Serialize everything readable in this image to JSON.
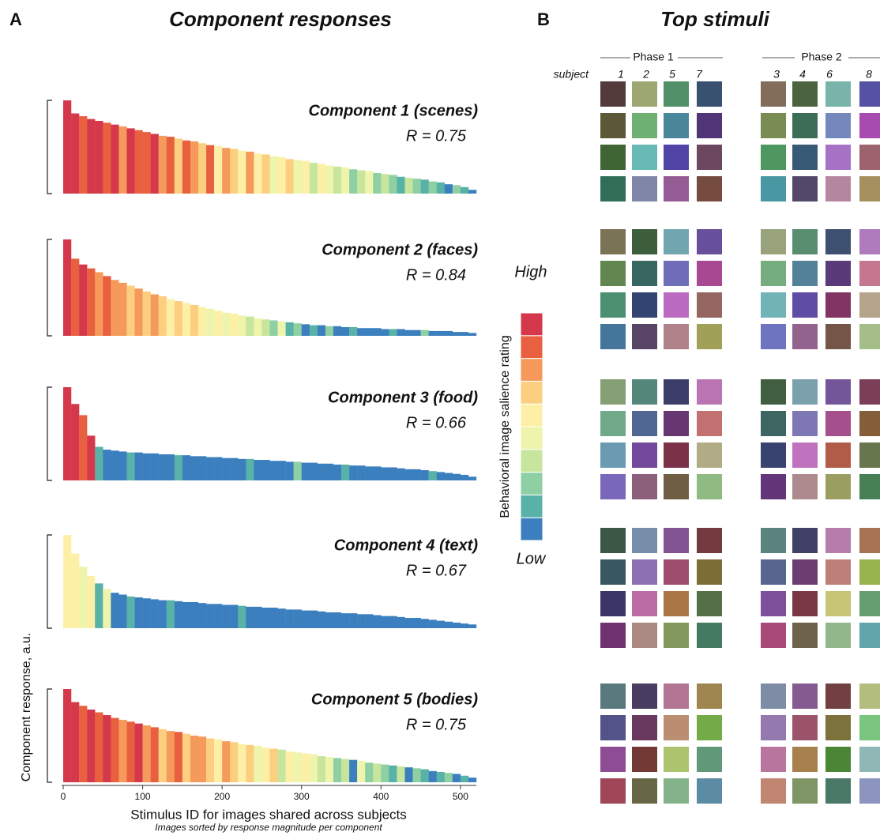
{
  "panels": {
    "A": {
      "letter": "A",
      "title": "Component responses"
    },
    "B": {
      "letter": "B",
      "title": "Top stimuli"
    }
  },
  "legend": {
    "title": "Behavioral image salience rating",
    "high": "High",
    "low": "Low",
    "colors": [
      "#3b7fbf",
      "#58b2a8",
      "#8ecfa3",
      "#c7e59c",
      "#eef4ab",
      "#fdf0a6",
      "#fbcf7f",
      "#f59a5a",
      "#e8603f",
      "#d5384a"
    ]
  },
  "top_stimuli": {
    "subject_label": "subject",
    "phases": [
      {
        "name": "Phase 1",
        "subjects": [
          "1",
          "2",
          "5",
          "7"
        ]
      },
      {
        "name": "Phase 2",
        "subjects": [
          "3",
          "4",
          "6",
          "8"
        ]
      }
    ]
  },
  "chart_data": [
    {
      "type": "bar",
      "title": "Component 1 (scenes)",
      "annotation": "R = 0.75",
      "xlim": [
        0,
        520
      ],
      "ylim": [
        0,
        1
      ],
      "x": [
        0,
        10,
        20,
        30,
        40,
        50,
        60,
        70,
        80,
        90,
        100,
        110,
        120,
        130,
        140,
        150,
        160,
        170,
        180,
        190,
        200,
        210,
        220,
        230,
        240,
        250,
        260,
        270,
        280,
        290,
        300,
        310,
        320,
        330,
        340,
        350,
        360,
        370,
        380,
        390,
        400,
        410,
        420,
        430,
        440,
        450,
        460,
        470,
        480,
        490,
        500,
        510
      ],
      "values": [
        1.0,
        0.86,
        0.83,
        0.8,
        0.78,
        0.76,
        0.74,
        0.72,
        0.7,
        0.68,
        0.66,
        0.64,
        0.62,
        0.61,
        0.59,
        0.57,
        0.56,
        0.54,
        0.52,
        0.51,
        0.49,
        0.48,
        0.46,
        0.45,
        0.43,
        0.42,
        0.4,
        0.39,
        0.37,
        0.36,
        0.35,
        0.33,
        0.32,
        0.3,
        0.29,
        0.28,
        0.26,
        0.25,
        0.24,
        0.22,
        0.21,
        0.2,
        0.18,
        0.17,
        0.16,
        0.15,
        0.13,
        0.12,
        0.1,
        0.09,
        0.07,
        0.04
      ],
      "ratings": [
        10,
        10,
        9,
        10,
        10,
        9,
        10,
        8,
        10,
        9,
        9,
        10,
        8,
        9,
        7,
        9,
        8,
        7,
        9,
        6,
        8,
        7,
        6,
        8,
        6,
        7,
        5,
        6,
        7,
        5,
        6,
        4,
        6,
        5,
        4,
        5,
        3,
        4,
        5,
        3,
        4,
        3,
        2,
        4,
        3,
        2,
        3,
        2,
        1,
        3,
        2,
        1
      ]
    },
    {
      "type": "bar",
      "title": "Component 2 (faces)",
      "annotation": "R = 0.84",
      "xlim": [
        0,
        520
      ],
      "ylim": [
        0,
        1
      ],
      "x": [
        0,
        10,
        20,
        30,
        40,
        50,
        60,
        70,
        80,
        90,
        100,
        110,
        120,
        130,
        140,
        150,
        160,
        170,
        180,
        190,
        200,
        210,
        220,
        230,
        240,
        250,
        260,
        270,
        280,
        290,
        300,
        310,
        320,
        330,
        340,
        350,
        360,
        370,
        380,
        390,
        400,
        410,
        420,
        430,
        440,
        450,
        460,
        470,
        480,
        490,
        500,
        510
      ],
      "values": [
        1.0,
        0.8,
        0.74,
        0.7,
        0.66,
        0.62,
        0.58,
        0.55,
        0.52,
        0.49,
        0.46,
        0.43,
        0.41,
        0.38,
        0.36,
        0.34,
        0.32,
        0.3,
        0.28,
        0.26,
        0.24,
        0.23,
        0.21,
        0.2,
        0.18,
        0.17,
        0.16,
        0.15,
        0.14,
        0.13,
        0.12,
        0.11,
        0.11,
        0.1,
        0.1,
        0.09,
        0.09,
        0.08,
        0.08,
        0.08,
        0.07,
        0.07,
        0.07,
        0.06,
        0.06,
        0.06,
        0.05,
        0.05,
        0.05,
        0.04,
        0.04,
        0.03
      ],
      "ratings": [
        10,
        9,
        10,
        9,
        8,
        9,
        8,
        8,
        7,
        8,
        7,
        8,
        7,
        6,
        7,
        6,
        7,
        6,
        5,
        6,
        5,
        6,
        5,
        4,
        5,
        4,
        3,
        5,
        2,
        3,
        1,
        2,
        1,
        3,
        1,
        1,
        2,
        1,
        1,
        1,
        1,
        2,
        1,
        1,
        1,
        3,
        1,
        1,
        1,
        1,
        1,
        1
      ]
    },
    {
      "type": "bar",
      "title": "Component 3 (food)",
      "annotation": "R = 0.66",
      "xlim": [
        0,
        520
      ],
      "ylim": [
        0,
        1
      ],
      "x": [
        0,
        10,
        20,
        30,
        40,
        50,
        60,
        70,
        80,
        90,
        100,
        110,
        120,
        130,
        140,
        150,
        160,
        170,
        180,
        190,
        200,
        210,
        220,
        230,
        240,
        250,
        260,
        270,
        280,
        290,
        300,
        310,
        320,
        330,
        340,
        350,
        360,
        370,
        380,
        390,
        400,
        410,
        420,
        430,
        440,
        450,
        460,
        470,
        480,
        490,
        500,
        510
      ],
      "values": [
        1.0,
        0.82,
        0.7,
        0.48,
        0.36,
        0.33,
        0.32,
        0.31,
        0.3,
        0.3,
        0.29,
        0.29,
        0.28,
        0.28,
        0.27,
        0.27,
        0.26,
        0.26,
        0.25,
        0.25,
        0.24,
        0.24,
        0.23,
        0.23,
        0.22,
        0.22,
        0.21,
        0.21,
        0.2,
        0.2,
        0.19,
        0.19,
        0.18,
        0.18,
        0.17,
        0.17,
        0.16,
        0.16,
        0.15,
        0.15,
        0.14,
        0.14,
        0.13,
        0.12,
        0.12,
        0.11,
        0.1,
        0.09,
        0.08,
        0.07,
        0.06,
        0.04
      ],
      "ratings": [
        10,
        10,
        9,
        10,
        2,
        1,
        1,
        1,
        2,
        1,
        1,
        1,
        1,
        1,
        2,
        1,
        1,
        1,
        1,
        1,
        1,
        1,
        1,
        2,
        1,
        1,
        1,
        1,
        1,
        3,
        1,
        1,
        1,
        1,
        1,
        2,
        1,
        1,
        1,
        1,
        1,
        1,
        1,
        1,
        1,
        1,
        2,
        1,
        1,
        1,
        1,
        1
      ]
    },
    {
      "type": "bar",
      "title": "Component 4 (text)",
      "annotation": "R = 0.67",
      "xlim": [
        0,
        520
      ],
      "ylim": [
        0,
        1
      ],
      "x": [
        0,
        10,
        20,
        30,
        40,
        50,
        60,
        70,
        80,
        90,
        100,
        110,
        120,
        130,
        140,
        150,
        160,
        170,
        180,
        190,
        200,
        210,
        220,
        230,
        240,
        250,
        260,
        270,
        280,
        290,
        300,
        310,
        320,
        330,
        340,
        350,
        360,
        370,
        380,
        390,
        400,
        410,
        420,
        430,
        440,
        450,
        460,
        470,
        480,
        490,
        500,
        510
      ],
      "values": [
        1.0,
        0.8,
        0.66,
        0.56,
        0.48,
        0.42,
        0.38,
        0.36,
        0.34,
        0.33,
        0.32,
        0.31,
        0.3,
        0.3,
        0.29,
        0.28,
        0.28,
        0.27,
        0.26,
        0.26,
        0.25,
        0.25,
        0.24,
        0.23,
        0.23,
        0.22,
        0.22,
        0.21,
        0.2,
        0.2,
        0.19,
        0.19,
        0.18,
        0.17,
        0.17,
        0.16,
        0.16,
        0.15,
        0.15,
        0.14,
        0.13,
        0.13,
        0.12,
        0.11,
        0.11,
        0.1,
        0.09,
        0.08,
        0.07,
        0.06,
        0.05,
        0.04
      ],
      "ratings": [
        6,
        6,
        5,
        6,
        2,
        5,
        1,
        1,
        2,
        1,
        1,
        1,
        1,
        2,
        1,
        1,
        1,
        1,
        1,
        1,
        1,
        1,
        2,
        1,
        1,
        1,
        1,
        1,
        1,
        1,
        1,
        1,
        1,
        1,
        1,
        1,
        1,
        1,
        1,
        1,
        1,
        1,
        1,
        1,
        1,
        1,
        1,
        1,
        1,
        1,
        1,
        1
      ]
    },
    {
      "type": "bar",
      "title": "Component 5 (bodies)",
      "annotation": "R = 0.75",
      "xlim": [
        0,
        520
      ],
      "ylim": [
        0,
        1
      ],
      "x": [
        0,
        10,
        20,
        30,
        40,
        50,
        60,
        70,
        80,
        90,
        100,
        110,
        120,
        130,
        140,
        150,
        160,
        170,
        180,
        190,
        200,
        210,
        220,
        230,
        240,
        250,
        260,
        270,
        280,
        290,
        300,
        310,
        320,
        330,
        340,
        350,
        360,
        370,
        380,
        390,
        400,
        410,
        420,
        430,
        440,
        450,
        460,
        470,
        480,
        490,
        500,
        510
      ],
      "values": [
        1.0,
        0.86,
        0.82,
        0.78,
        0.75,
        0.72,
        0.69,
        0.67,
        0.65,
        0.63,
        0.61,
        0.59,
        0.57,
        0.55,
        0.54,
        0.52,
        0.5,
        0.49,
        0.47,
        0.46,
        0.44,
        0.43,
        0.41,
        0.4,
        0.39,
        0.37,
        0.36,
        0.35,
        0.33,
        0.32,
        0.31,
        0.3,
        0.28,
        0.27,
        0.26,
        0.25,
        0.24,
        0.23,
        0.21,
        0.2,
        0.19,
        0.18,
        0.17,
        0.16,
        0.15,
        0.14,
        0.12,
        0.11,
        0.1,
        0.09,
        0.07,
        0.05
      ],
      "ratings": [
        10,
        10,
        9,
        10,
        9,
        10,
        9,
        8,
        9,
        10,
        8,
        9,
        7,
        8,
        9,
        7,
        8,
        8,
        7,
        6,
        8,
        7,
        6,
        7,
        5,
        6,
        7,
        4,
        6,
        5,
        6,
        5,
        4,
        5,
        3,
        4,
        1,
        5,
        3,
        4,
        3,
        2,
        4,
        1,
        3,
        2,
        1,
        2,
        3,
        1,
        2,
        1
      ],
      "xticks": [
        0,
        100,
        200,
        300,
        400,
        500
      ],
      "xlabel": "Stimulus ID for images shared across subjects",
      "xsubtitle": "Images sorted by response magnitude per component",
      "ylabel": "Component response, a.u."
    }
  ]
}
